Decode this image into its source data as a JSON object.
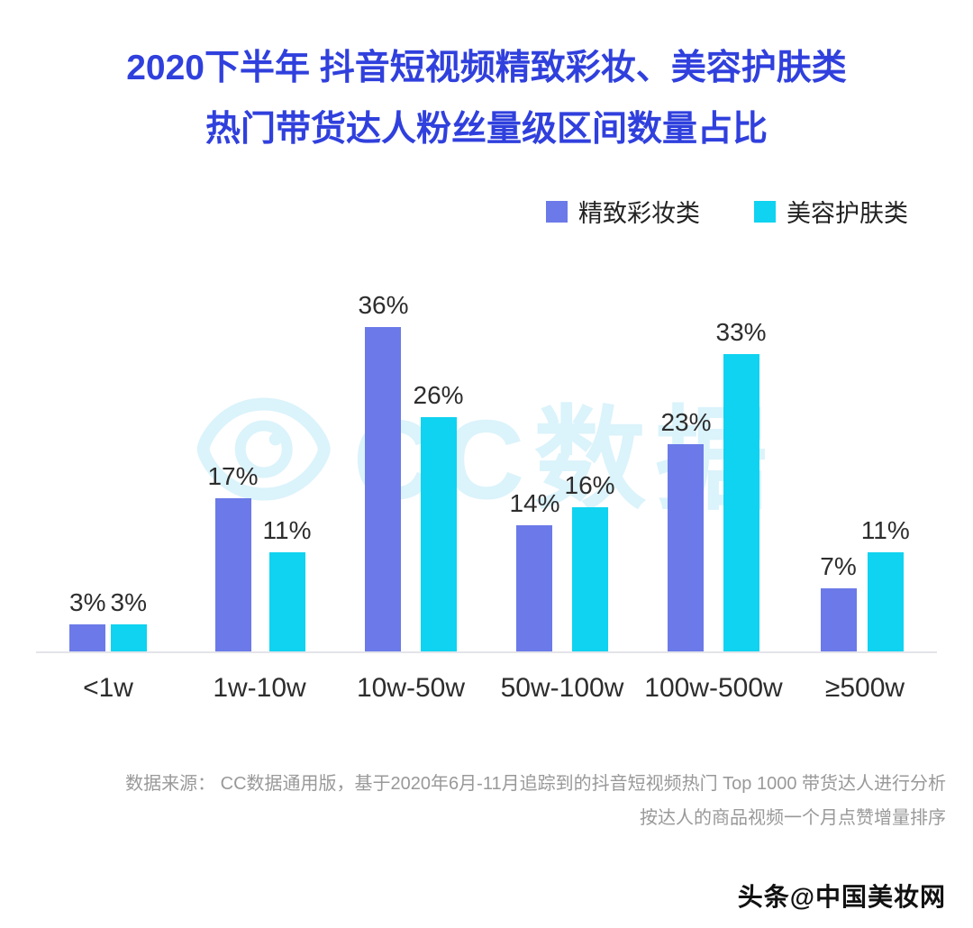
{
  "title": {
    "line1": "2020下半年 抖音短视频精致彩妆、美容护肤类",
    "line2": "热门带货达人粉丝量级区间数量占比"
  },
  "watermark": {
    "text": "CC数据"
  },
  "chart_data": {
    "type": "bar",
    "categories": [
      "<1w",
      "1w-10w",
      "10w-50w",
      "50w-100w",
      "100w-500w",
      "≥500w"
    ],
    "series": [
      {
        "name": "精致彩妆类",
        "color": "#6b7ae8",
        "values": [
          3,
          17,
          36,
          14,
          23,
          7
        ]
      },
      {
        "name": "美容护肤类",
        "color": "#0fd3f0",
        "values": [
          3,
          11,
          26,
          16,
          33,
          11
        ]
      }
    ],
    "ylim": [
      0,
      40
    ],
    "value_suffix": "%",
    "legend_position": "top-right",
    "grid": false
  },
  "footer": {
    "line1": "数据来源： CC数据通用版，基于2020年6月-11月追踪到的抖音短视频热门 Top 1000 带货达人进行分析",
    "line2": "按达人的商品视频一个月点赞增量排序"
  },
  "credit": {
    "text": "头条@中国美妆网"
  }
}
